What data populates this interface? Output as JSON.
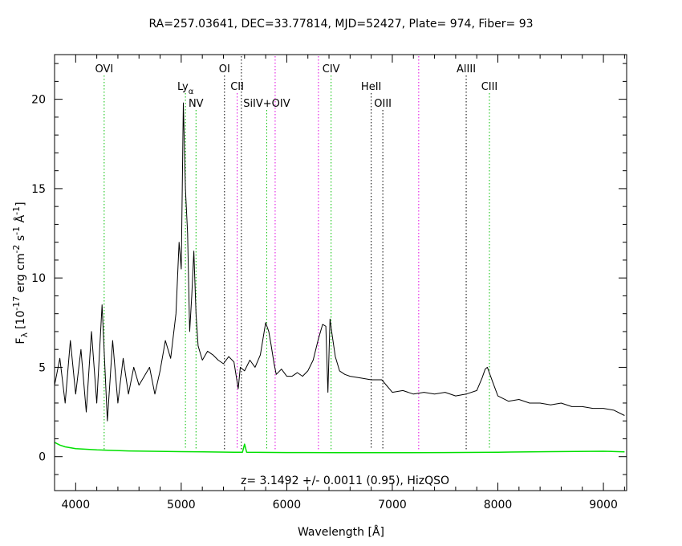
{
  "chart_data": {
    "type": "line",
    "title": "RA=257.03641, DEC=33.77814, MJD=52427, Plate=  974, Fiber=  93",
    "xlabel": "Wavelength [Å]",
    "ylabel": "F",
    "ylabel_sub": "λ",
    "ylabel_unit": "[10",
    "ylabel_exp1": "-17",
    "ylabel_mid1": " erg cm",
    "ylabel_exp2": "-2",
    "ylabel_mid2": " s",
    "ylabel_exp3": "-1",
    "ylabel_mid3": " Å",
    "ylabel_exp4": "-1",
    "ylabel_end": "]",
    "annotation": "z=  3.1492 +/-  0.0011 (0.95), HizQSO",
    "xlim": [
      3800,
      9220
    ],
    "ylim": [
      -1.9,
      22.5
    ],
    "xticks": [
      "4000",
      "5000",
      "6000",
      "7000",
      "8000",
      "9000"
    ],
    "yticks": [
      "0",
      "5",
      "10",
      "15",
      "20"
    ],
    "colors": {
      "flux": "#000000",
      "error": "#00e000",
      "green_line": "#00c000",
      "magenta_line": "#e000e0",
      "black_line": "#000000"
    },
    "series": [
      {
        "role": "flux",
        "x": [
          3800,
          3850,
          3900,
          3950,
          4000,
          4050,
          4100,
          4150,
          4200,
          4250,
          4300,
          4350,
          4400,
          4450,
          4500,
          4550,
          4600,
          4650,
          4700,
          4750,
          4800,
          4850,
          4900,
          4950,
          4980,
          5000,
          5020,
          5040,
          5060,
          5080,
          5100,
          5120,
          5140,
          5160,
          5200,
          5250,
          5300,
          5350,
          5400,
          5450,
          5500,
          5540,
          5560,
          5600,
          5650,
          5700,
          5750,
          5800,
          5830,
          5850,
          5880,
          5900,
          5950,
          6000,
          6050,
          6100,
          6150,
          6200,
          6250,
          6300,
          6340,
          6370,
          6390,
          6410,
          6430,
          6460,
          6500,
          6550,
          6600,
          6700,
          6800,
          6900,
          7000,
          7100,
          7200,
          7300,
          7400,
          7500,
          7600,
          7700,
          7800,
          7850,
          7880,
          7900,
          7950,
          8000,
          8100,
          8200,
          8300,
          8400,
          8500,
          8600,
          8700,
          8800,
          8900,
          9000,
          9100,
          9200
        ],
        "y": [
          4.0,
          5.5,
          3.0,
          6.5,
          3.5,
          6.0,
          2.5,
          7.0,
          3.0,
          8.5,
          2.0,
          6.5,
          3.0,
          5.5,
          3.5,
          5.0,
          4.0,
          4.5,
          5.0,
          3.5,
          4.8,
          6.5,
          5.5,
          8.0,
          12.0,
          10.5,
          19.8,
          15.0,
          12.5,
          7.0,
          9.0,
          11.5,
          8.0,
          6.2,
          5.4,
          5.9,
          5.7,
          5.4,
          5.2,
          5.6,
          5.3,
          3.8,
          5.0,
          4.8,
          5.4,
          5.0,
          5.7,
          7.5,
          7.0,
          6.3,
          5.2,
          4.6,
          4.9,
          4.5,
          4.5,
          4.7,
          4.5,
          4.8,
          5.4,
          6.6,
          7.4,
          7.3,
          3.6,
          7.7,
          6.8,
          5.6,
          4.8,
          4.6,
          4.5,
          4.4,
          4.3,
          4.3,
          3.6,
          3.7,
          3.5,
          3.6,
          3.5,
          3.6,
          3.4,
          3.5,
          3.7,
          4.4,
          4.9,
          5.0,
          4.2,
          3.4,
          3.1,
          3.2,
          3.0,
          3.0,
          2.9,
          3.0,
          2.8,
          2.8,
          2.7,
          2.7,
          2.6,
          2.3
        ]
      },
      {
        "role": "error",
        "x": [
          3800,
          3850,
          3900,
          4000,
          4200,
          4500,
          5000,
          5500,
          5580,
          5600,
          5620,
          6000,
          6500,
          7000,
          7500,
          8000,
          8500,
          9000,
          9200
        ],
        "y": [
          0.8,
          0.65,
          0.55,
          0.45,
          0.38,
          0.32,
          0.28,
          0.25,
          0.25,
          0.7,
          0.25,
          0.23,
          0.22,
          0.22,
          0.23,
          0.25,
          0.28,
          0.3,
          0.27
        ]
      }
    ],
    "lines": [
      {
        "label": "OVI",
        "x": 4270,
        "color": "green",
        "row": 1
      },
      {
        "label": "Ly",
        "sub": "α",
        "x": 5040,
        "color": "green",
        "row": 2
      },
      {
        "label": "NV",
        "x": 5140,
        "color": "green",
        "row": 3
      },
      {
        "label": "OI",
        "x": 5410,
        "color": "black",
        "row": 1
      },
      {
        "label": "CII",
        "x": 5530,
        "color": "magenta",
        "row": 2
      },
      {
        "label": "",
        "x": 5570,
        "color": "black",
        "row": 0
      },
      {
        "label": "SiIV+OIV",
        "x": 5810,
        "color": "green",
        "row": 3
      },
      {
        "label": "",
        "x": 5890,
        "color": "magenta",
        "row": 0
      },
      {
        "label": "",
        "x": 6300,
        "color": "magenta",
        "row": 0
      },
      {
        "label": "CIV",
        "x": 6420,
        "color": "green",
        "row": 1
      },
      {
        "label": "HeII",
        "x": 6800,
        "color": "black",
        "row": 2
      },
      {
        "label": "OIII",
        "x": 6910,
        "color": "black",
        "row": 3
      },
      {
        "label": "",
        "x": 7250,
        "color": "magenta",
        "row": 0
      },
      {
        "label": "AlIII",
        "x": 7700,
        "color": "black",
        "row": 1
      },
      {
        "label": "CIII",
        "x": 7920,
        "color": "green",
        "row": 2
      }
    ]
  }
}
